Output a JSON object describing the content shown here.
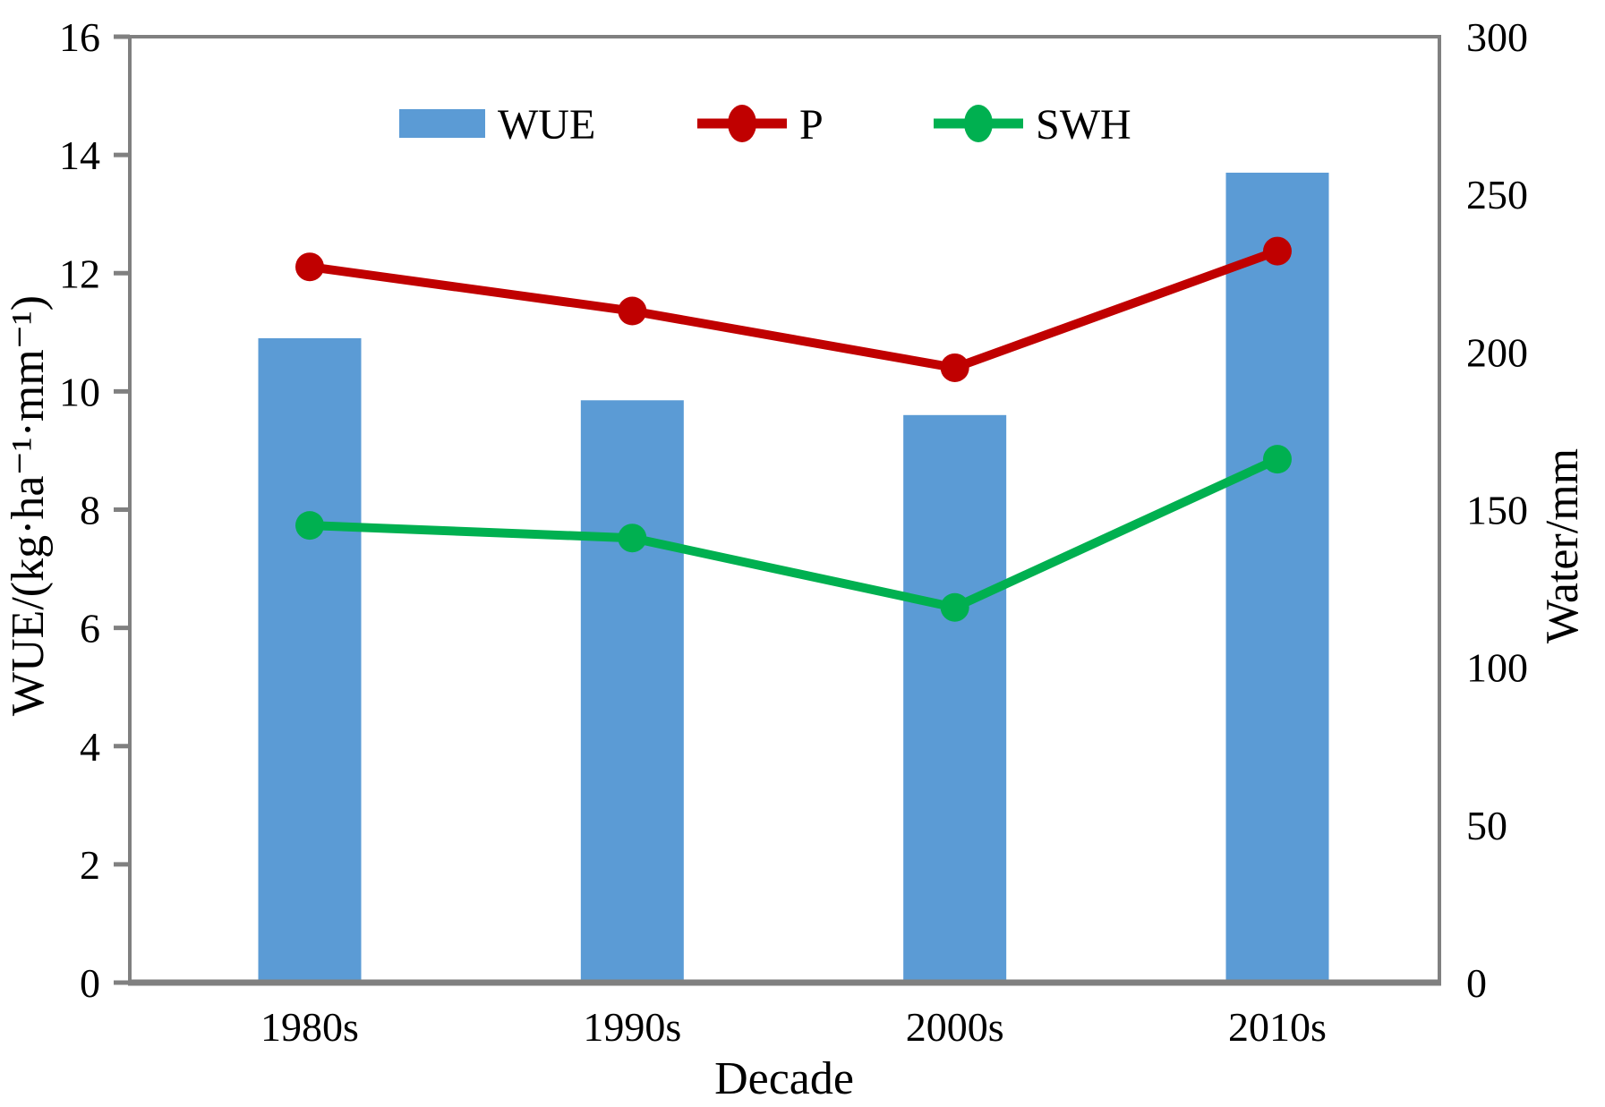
{
  "chart_data": {
    "type": "bar+line",
    "categories": [
      "1980s",
      "1990s",
      "2000s",
      "2010s"
    ],
    "series": [
      {
        "name": "WUE",
        "type": "bar",
        "axis": "left",
        "color": "#5B9BD5",
        "values": [
          10.9,
          9.85,
          9.6,
          13.7
        ]
      },
      {
        "name": "P",
        "type": "line",
        "axis": "right",
        "color": "#C00000",
        "values": [
          227,
          213,
          195,
          232
        ]
      },
      {
        "name": "SWH",
        "type": "line",
        "axis": "right",
        "color": "#00B050",
        "values": [
          145,
          141,
          119,
          166
        ]
      }
    ],
    "title": "",
    "xlabel": "Decade",
    "ylabel_left": "WUE/(kg·ha⁻¹·mm⁻¹)",
    "ylabel_right": "Water/mm",
    "ylim_left": [
      0,
      16
    ],
    "ylim_right": [
      0,
      300
    ],
    "yticks_left": [
      0,
      2,
      4,
      6,
      8,
      10,
      12,
      14,
      16
    ],
    "yticks_right": [
      0,
      50,
      100,
      150,
      200,
      250,
      300
    ],
    "grid": false,
    "legend_position": "top-center-row",
    "axis_color": "#808080",
    "text_color": "#000000",
    "background": "#FFFFFF"
  }
}
